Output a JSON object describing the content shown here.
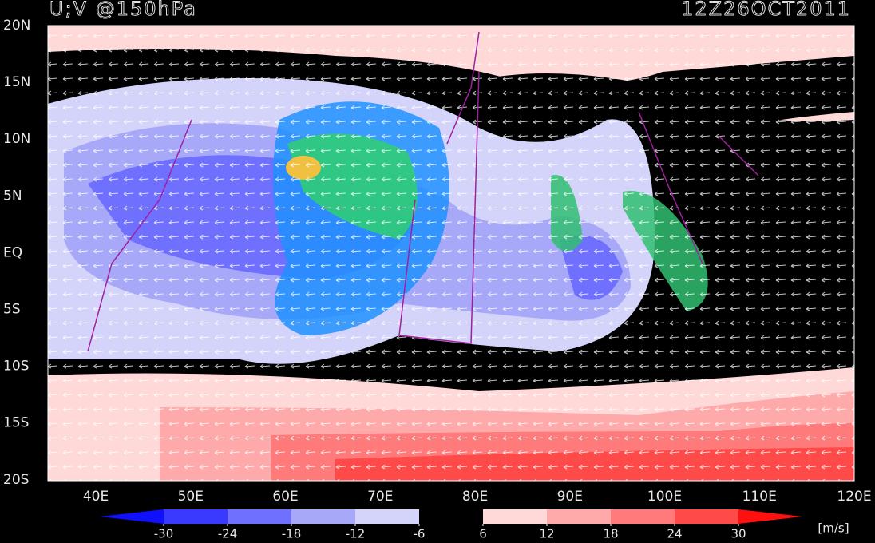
{
  "map": {
    "title": "U;V @150hPa",
    "timestamp": "12Z26OCT2011",
    "lat_labels": [
      "20N",
      "15N",
      "10N",
      "5N",
      "EQ",
      "5S",
      "10S",
      "15S",
      "20S"
    ],
    "lon_labels": [
      "40E",
      "50E",
      "60E",
      "70E",
      "80E",
      "90E",
      "100E",
      "110E",
      "120E"
    ]
  },
  "colorbar": {
    "ticks": [
      -30,
      -24,
      -18,
      -12,
      -6,
      6,
      12,
      18,
      24,
      30
    ],
    "colors": [
      "#1010ff",
      "#3a3aff",
      "#7070ff",
      "#a8a8f8",
      "#d4d4fa",
      "#000000",
      "#ffd8d8",
      "#ffaaaa",
      "#ff7a7a",
      "#ff4a4a",
      "#ff1010"
    ],
    "units": "[m/s]"
  }
}
